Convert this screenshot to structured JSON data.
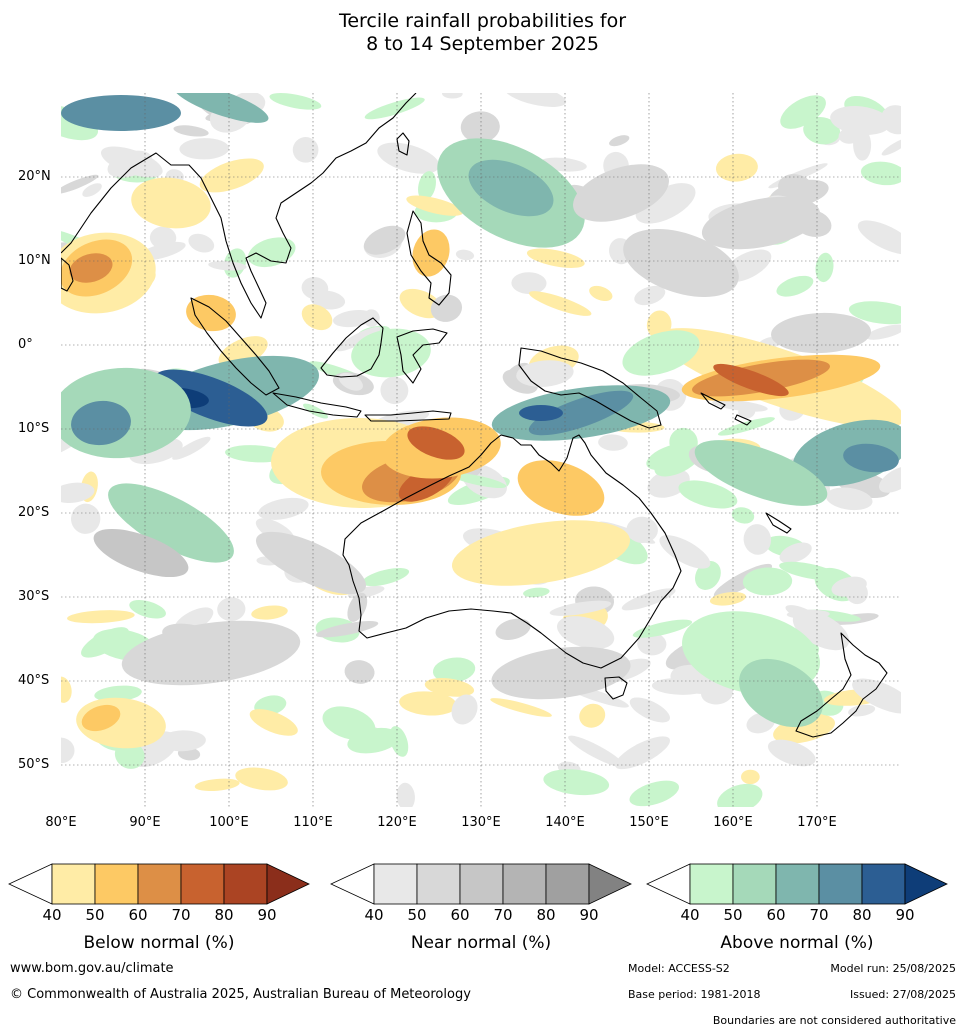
{
  "title": {
    "line1": "Tercile rainfall probabilities for",
    "line2": "8 to 14 September 2025"
  },
  "axes": {
    "lat_labels": [
      "20°N",
      "10°N",
      "0°",
      "10°S",
      "20°S",
      "30°S",
      "40°S",
      "50°S"
    ],
    "lon_labels": [
      "80°E",
      "90°E",
      "100°E",
      "110°E",
      "120°E",
      "130°E",
      "140°E",
      "150°E",
      "160°E",
      "170°E"
    ]
  },
  "colorbars": [
    {
      "label": "Below normal (%)",
      "ticks": [
        "40",
        "50",
        "60",
        "70",
        "80",
        "90"
      ],
      "colors": [
        "#ffeca6",
        "#fdc964",
        "#dd8f46",
        "#c8622f",
        "#ab4423",
        "#8b2e1b"
      ]
    },
    {
      "label": "Near normal (%)",
      "ticks": [
        "40",
        "50",
        "60",
        "70",
        "80",
        "90"
      ],
      "colors": [
        "#e8e8e8",
        "#d8d8d8",
        "#c6c6c6",
        "#b4b4b4",
        "#a0a0a0",
        "#828282"
      ]
    },
    {
      "label": "Above normal (%)",
      "ticks": [
        "40",
        "50",
        "60",
        "70",
        "80",
        "90"
      ],
      "colors": [
        "#c8f5cc",
        "#a5d9b9",
        "#7fb6ae",
        "#5b8fa3",
        "#2c5e93",
        "#0e3d78"
      ]
    }
  ],
  "footer": {
    "website": "www.bom.gov.au/climate",
    "copyright": "© Commonwealth of Australia 2025, Australian Bureau of Meteorology",
    "model": "Model: ACCESS-S2",
    "model_run": "Model run: 25/08/2025",
    "base_period": "Base period: 1981-2018",
    "issued": "Issued: 27/08/2025",
    "disclaimer": "Boundaries are not considered authoritative"
  }
}
